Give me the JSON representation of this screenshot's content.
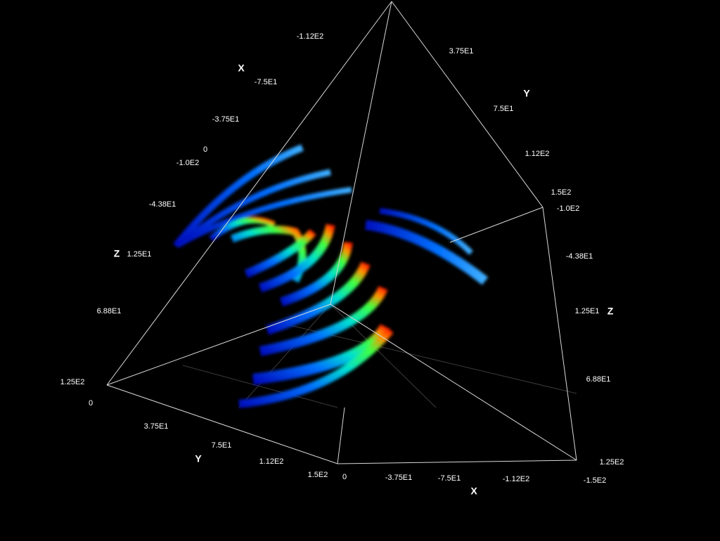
{
  "axes": [
    {
      "name": "X",
      "ticks": [
        "-1.12E2",
        "-7.5E1",
        "-3.75E1",
        "0"
      ]
    },
    {
      "name": "Y",
      "ticks": [
        "3.75E1",
        "7.5E1",
        "1.12E2",
        "1.5E2"
      ]
    },
    {
      "name": "Z",
      "ticks": [
        "-1.0E2",
        "-4.38E1",
        "1.25E1",
        "6.88E1",
        "1.25E2"
      ]
    },
    {
      "name": "Z",
      "ticks": [
        "-1.0E2",
        "-4.38E1",
        "1.25E1",
        "6.88E1",
        "1.25E2"
      ]
    },
    {
      "name": "Y",
      "ticks": [
        "0",
        "3.75E1",
        "7.5E1",
        "1.12E2",
        "1.5E2"
      ]
    },
    {
      "name": "X",
      "ticks": [
        "0",
        "-3.75E1",
        "-7.5E1",
        "-1.12E2",
        "-1.5E2"
      ]
    }
  ]
}
